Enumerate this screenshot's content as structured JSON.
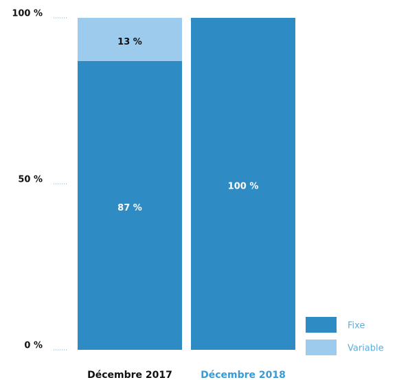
{
  "chart_data": {
    "type": "stacked_bar",
    "categories": [
      "Décembre 2017",
      "Décembre 2018"
    ],
    "series": [
      {
        "name": "Fixe",
        "color": "#2e8bc4",
        "label_color": "#ffffff",
        "values": [
          87,
          100
        ],
        "value_labels": [
          "87 %",
          "100 %"
        ]
      },
      {
        "name": "Variable",
        "color": "#9ccbee",
        "label_color": "#111111",
        "values": [
          13,
          0
        ],
        "value_labels": [
          "13 %",
          null
        ]
      }
    ],
    "ylim": [
      0,
      100
    ],
    "yticks": [
      {
        "value": 0,
        "label": "0 %"
      },
      {
        "value": 50,
        "label": "50 %"
      },
      {
        "value": 100,
        "label": "100 %"
      }
    ]
  }
}
